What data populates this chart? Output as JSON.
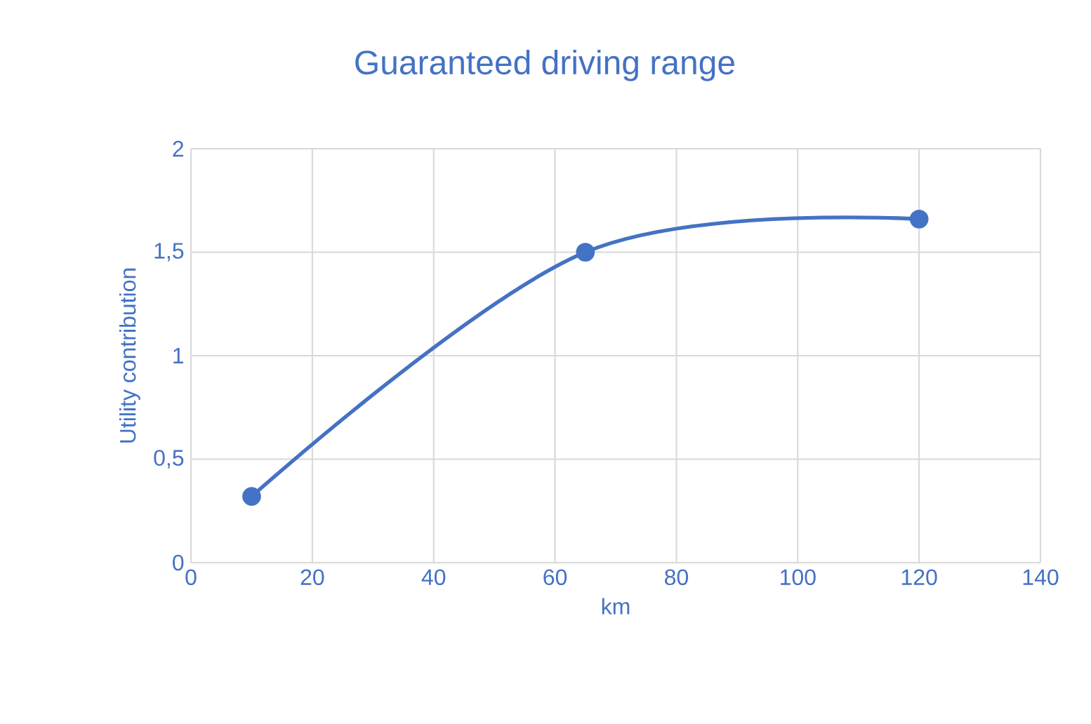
{
  "chart_data": {
    "type": "line",
    "title": "Guaranteed driving range",
    "xlabel": "km",
    "ylabel": "Utility contribution",
    "x": [
      10,
      65,
      120
    ],
    "series": [
      {
        "color": "#4472c4",
        "values": [
          0.32,
          1.5,
          1.66
        ]
      }
    ],
    "xlim": [
      0,
      140
    ],
    "ylim": [
      0,
      2
    ],
    "xticks": [
      0,
      20,
      40,
      60,
      80,
      100,
      120,
      140
    ],
    "yticks": [
      0,
      {
        "value": 0.5,
        "label": "0,5"
      },
      1,
      {
        "value": 1.5,
        "label": "1,5"
      },
      2
    ],
    "grid": true,
    "marker": "circle",
    "line_style": "solid"
  }
}
